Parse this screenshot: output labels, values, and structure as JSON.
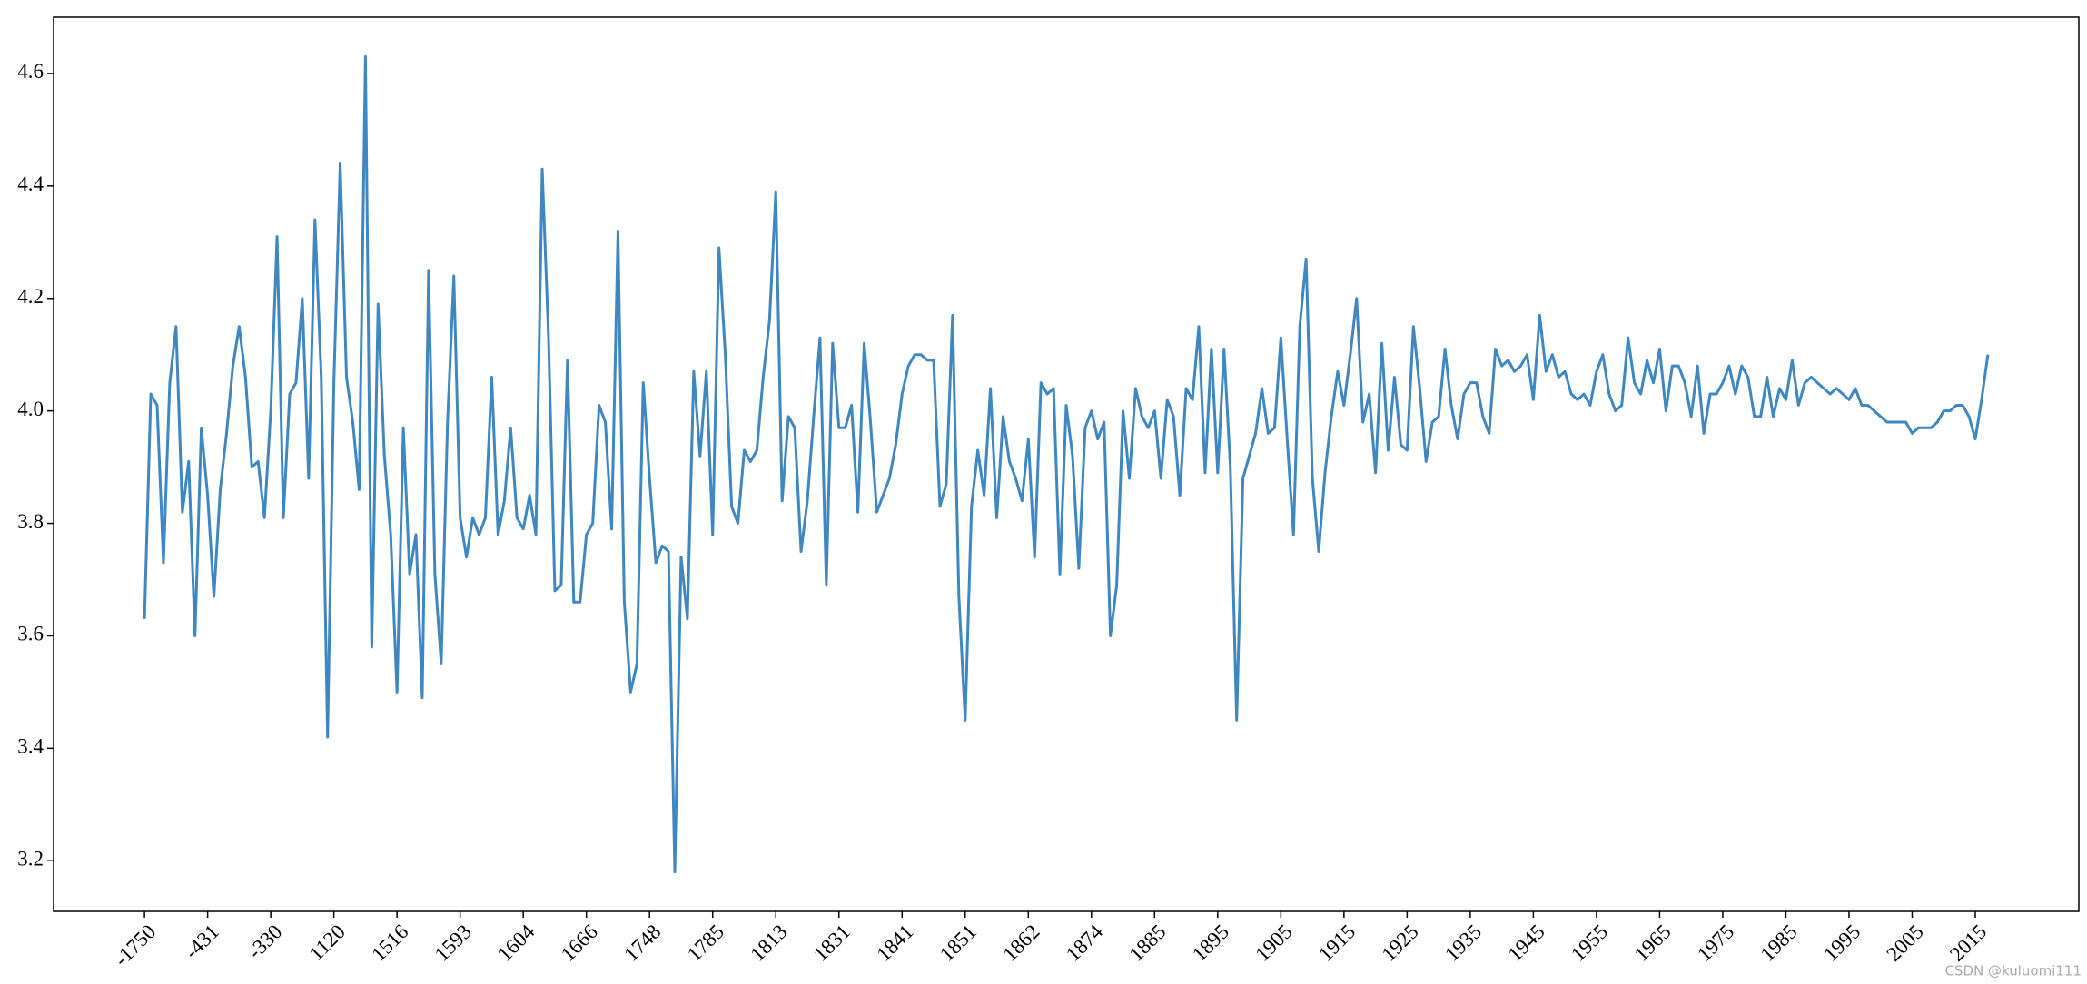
{
  "chart_data": {
    "type": "line",
    "categories": [
      "-1750",
      null,
      null,
      null,
      null,
      null,
      null,
      null,
      null,
      null,
      "-431",
      null,
      null,
      null,
      null,
      null,
      null,
      null,
      null,
      null,
      "-330",
      null,
      null,
      null,
      null,
      null,
      null,
      null,
      null,
      null,
      "1120",
      null,
      null,
      null,
      null,
      null,
      null,
      null,
      null,
      null,
      "1516",
      null,
      null,
      null,
      null,
      null,
      null,
      null,
      null,
      null,
      "1593",
      null,
      null,
      null,
      null,
      null,
      null,
      null,
      null,
      null,
      "1604",
      null,
      null,
      null,
      null,
      null,
      null,
      null,
      null,
      null,
      "1666",
      null,
      null,
      null,
      null,
      null,
      null,
      null,
      null,
      null,
      "1748",
      null,
      null,
      null,
      null,
      null,
      null,
      null,
      null,
      null,
      "1785",
      null,
      null,
      null,
      null,
      null,
      null,
      null,
      null,
      null,
      "1813",
      null,
      null,
      null,
      null,
      null,
      null,
      null,
      null,
      null,
      "1831",
      null,
      null,
      null,
      null,
      null,
      null,
      null,
      null,
      null,
      "1841",
      null,
      null,
      null,
      null,
      null,
      null,
      null,
      null,
      null,
      "1851",
      null,
      null,
      null,
      null,
      null,
      null,
      null,
      null,
      null,
      "1862",
      null,
      null,
      null,
      null,
      null,
      null,
      null,
      null,
      null,
      "1874",
      null,
      null,
      null,
      null,
      null,
      null,
      null,
      null,
      null,
      "1885",
      null,
      null,
      null,
      null,
      null,
      null,
      null,
      null,
      null,
      "1895",
      null,
      null,
      null,
      null,
      null,
      null,
      null,
      null,
      null,
      "1905",
      null,
      null,
      null,
      null,
      null,
      null,
      null,
      null,
      null,
      "1915",
      null,
      null,
      null,
      null,
      null,
      null,
      null,
      null,
      null,
      "1925",
      null,
      null,
      null,
      null,
      null,
      null,
      null,
      null,
      null,
      "1935",
      null,
      null,
      null,
      null,
      null,
      null,
      null,
      null,
      null,
      "1945",
      null,
      null,
      null,
      null,
      null,
      null,
      null,
      null,
      null,
      "1955",
      null,
      null,
      null,
      null,
      null,
      null,
      null,
      null,
      null,
      "1965",
      null,
      null,
      null,
      null,
      null,
      null,
      null,
      null,
      null,
      "1975",
      null,
      null,
      null,
      null,
      null,
      null,
      null,
      null,
      null,
      "1985",
      null,
      null,
      null,
      null,
      null,
      null,
      null,
      null,
      null,
      "1995",
      null,
      null,
      null,
      null,
      null,
      null,
      null,
      null,
      null,
      "2005",
      null,
      null,
      null,
      null,
      null,
      null,
      null,
      null,
      null,
      "2015",
      null,
      null
    ],
    "values": [
      3.63,
      4.03,
      4.01,
      3.73,
      4.05,
      4.15,
      3.82,
      3.91,
      3.6,
      3.97,
      3.85,
      3.67,
      3.86,
      3.96,
      4.08,
      4.15,
      4.06,
      3.9,
      3.91,
      3.81,
      4.0,
      4.31,
      3.81,
      4.03,
      4.05,
      4.2,
      3.88,
      4.34,
      4.06,
      3.42,
      4.05,
      4.44,
      4.06,
      3.98,
      3.86,
      4.63,
      3.58,
      4.19,
      3.92,
      3.78,
      3.5,
      3.97,
      3.71,
      3.78,
      3.49,
      4.25,
      3.71,
      3.55,
      3.98,
      4.24,
      3.81,
      3.74,
      3.81,
      3.78,
      3.81,
      4.06,
      3.78,
      3.84,
      3.97,
      3.81,
      3.79,
      3.85,
      3.78,
      4.43,
      4.13,
      3.68,
      3.69,
      4.09,
      3.66,
      3.66,
      3.78,
      3.8,
      4.01,
      3.98,
      3.79,
      4.32,
      3.66,
      3.5,
      3.55,
      4.05,
      3.88,
      3.73,
      3.76,
      3.75,
      3.18,
      3.74,
      3.63,
      4.07,
      3.92,
      4.07,
      3.78,
      4.29,
      4.1,
      3.83,
      3.8,
      3.93,
      3.91,
      3.93,
      4.06,
      4.16,
      4.39,
      3.84,
      3.99,
      3.97,
      3.75,
      3.84,
      3.99,
      4.13,
      3.69,
      4.12,
      3.97,
      3.97,
      4.01,
      3.82,
      4.12,
      3.98,
      3.82,
      3.85,
      3.88,
      3.94,
      4.03,
      4.08,
      4.1,
      4.1,
      4.09,
      4.09,
      3.83,
      3.87,
      4.17,
      3.67,
      3.45,
      3.83,
      3.93,
      3.85,
      4.04,
      3.81,
      3.99,
      3.91,
      3.88,
      3.84,
      3.95,
      3.74,
      4.05,
      4.03,
      4.04,
      3.71,
      4.01,
      3.92,
      3.72,
      3.97,
      4.0,
      3.95,
      3.98,
      3.6,
      3.69,
      4.0,
      3.88,
      4.04,
      3.99,
      3.97,
      4.0,
      3.88,
      4.02,
      3.99,
      3.85,
      4.04,
      4.02,
      4.15,
      3.89,
      4.11,
      3.89,
      4.11,
      3.9,
      3.45,
      3.88,
      3.92,
      3.96,
      4.04,
      3.96,
      3.97,
      4.13,
      3.95,
      3.78,
      4.15,
      4.27,
      3.88,
      3.75,
      3.89,
      3.99,
      4.07,
      4.01,
      4.1,
      4.2,
      3.98,
      4.03,
      3.89,
      4.12,
      3.93,
      4.06,
      3.94,
      3.93,
      4.15,
      4.04,
      3.91,
      3.98,
      3.99,
      4.11,
      4.01,
      3.95,
      4.03,
      4.05,
      4.05,
      3.99,
      3.96,
      4.11,
      4.08,
      4.09,
      4.07,
      4.08,
      4.1,
      4.02,
      4.17,
      4.07,
      4.1,
      4.06,
      4.07,
      4.03,
      4.02,
      4.03,
      4.01,
      4.07,
      4.1,
      4.03,
      4.0,
      4.01,
      4.13,
      4.05,
      4.03,
      4.09,
      4.05,
      4.11,
      4.0,
      4.08,
      4.08,
      4.05,
      3.99,
      4.08,
      3.96,
      4.03,
      4.03,
      4.05,
      4.08,
      4.03,
      4.08,
      4.06,
      3.99,
      3.99,
      4.06,
      3.99,
      4.04,
      4.02,
      4.09,
      4.01,
      4.05,
      4.06,
      4.05,
      4.04,
      4.03,
      4.04,
      4.03,
      4.02,
      4.04,
      4.01,
      4.01,
      4.0,
      3.99,
      3.98,
      3.98,
      3.98,
      3.98,
      3.96,
      3.97,
      3.97,
      3.97,
      3.98,
      4.0,
      4.0,
      4.01,
      4.01,
      3.99,
      3.95,
      4.02,
      4.1
    ],
    "color": "#3f87c0",
    "ylim": [
      3.11,
      4.7
    ],
    "yticks": [
      3.2,
      3.4,
      3.6,
      3.8,
      {
        "value": 4,
        "label": "4.0"
      },
      4.2,
      4.4,
      4.6
    ],
    "grid": false,
    "watermark": "CSDN @kuluomi111"
  }
}
